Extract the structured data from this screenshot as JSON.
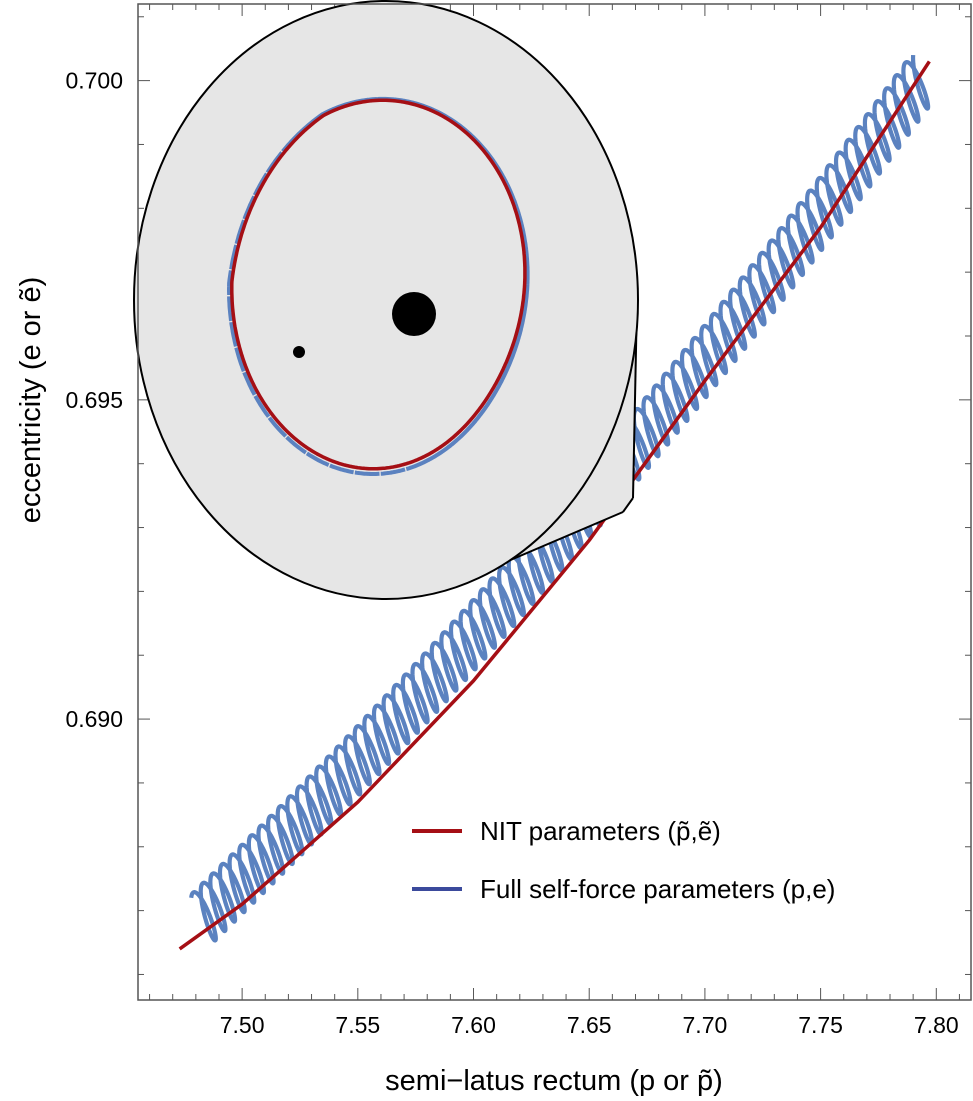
{
  "chart_data": {
    "type": "line",
    "title": "",
    "xlabel": "semi−latus rectum  (p or p̃)",
    "ylabel": "eccentricity  (e or ẽ)",
    "xlim": [
      7.455,
      7.815
    ],
    "ylim": [
      0.6856,
      0.7012
    ],
    "x_ticks": [
      "7.50",
      "7.55",
      "7.60",
      "7.65",
      "7.70",
      "7.75",
      "7.80"
    ],
    "y_ticks": [
      "0.690",
      "0.695",
      "0.700"
    ],
    "grid": false,
    "legend_position": "bottom-right",
    "series": [
      {
        "name": "NIT parameters (p̃,ẽ)",
        "color": "#a50f15",
        "style": "solid",
        "points": [
          [
            7.473,
            0.6864
          ],
          [
            7.5,
            0.6871
          ],
          [
            7.55,
            0.6887
          ],
          [
            7.6,
            0.6906
          ],
          [
            7.65,
            0.6928
          ],
          [
            7.7,
            0.6953
          ],
          [
            7.75,
            0.6977
          ],
          [
            7.797,
            0.7003
          ]
        ]
      },
      {
        "name": "Full self-force parameters (p,e)",
        "color": "#5b82c0",
        "style": "oscillating",
        "cycles": 75,
        "start": [
          7.478,
          0.6872
        ],
        "end": [
          7.79,
          0.7004
        ],
        "amplitude_p": 0.0085,
        "amplitude_e": 0.00068
      }
    ],
    "inset": {
      "description": "orbit trajectory",
      "start_marker": "small dot",
      "central_body": "large black disk",
      "series_styles": [
        "NIT solid red",
        "self-force dashed blue"
      ]
    }
  }
}
